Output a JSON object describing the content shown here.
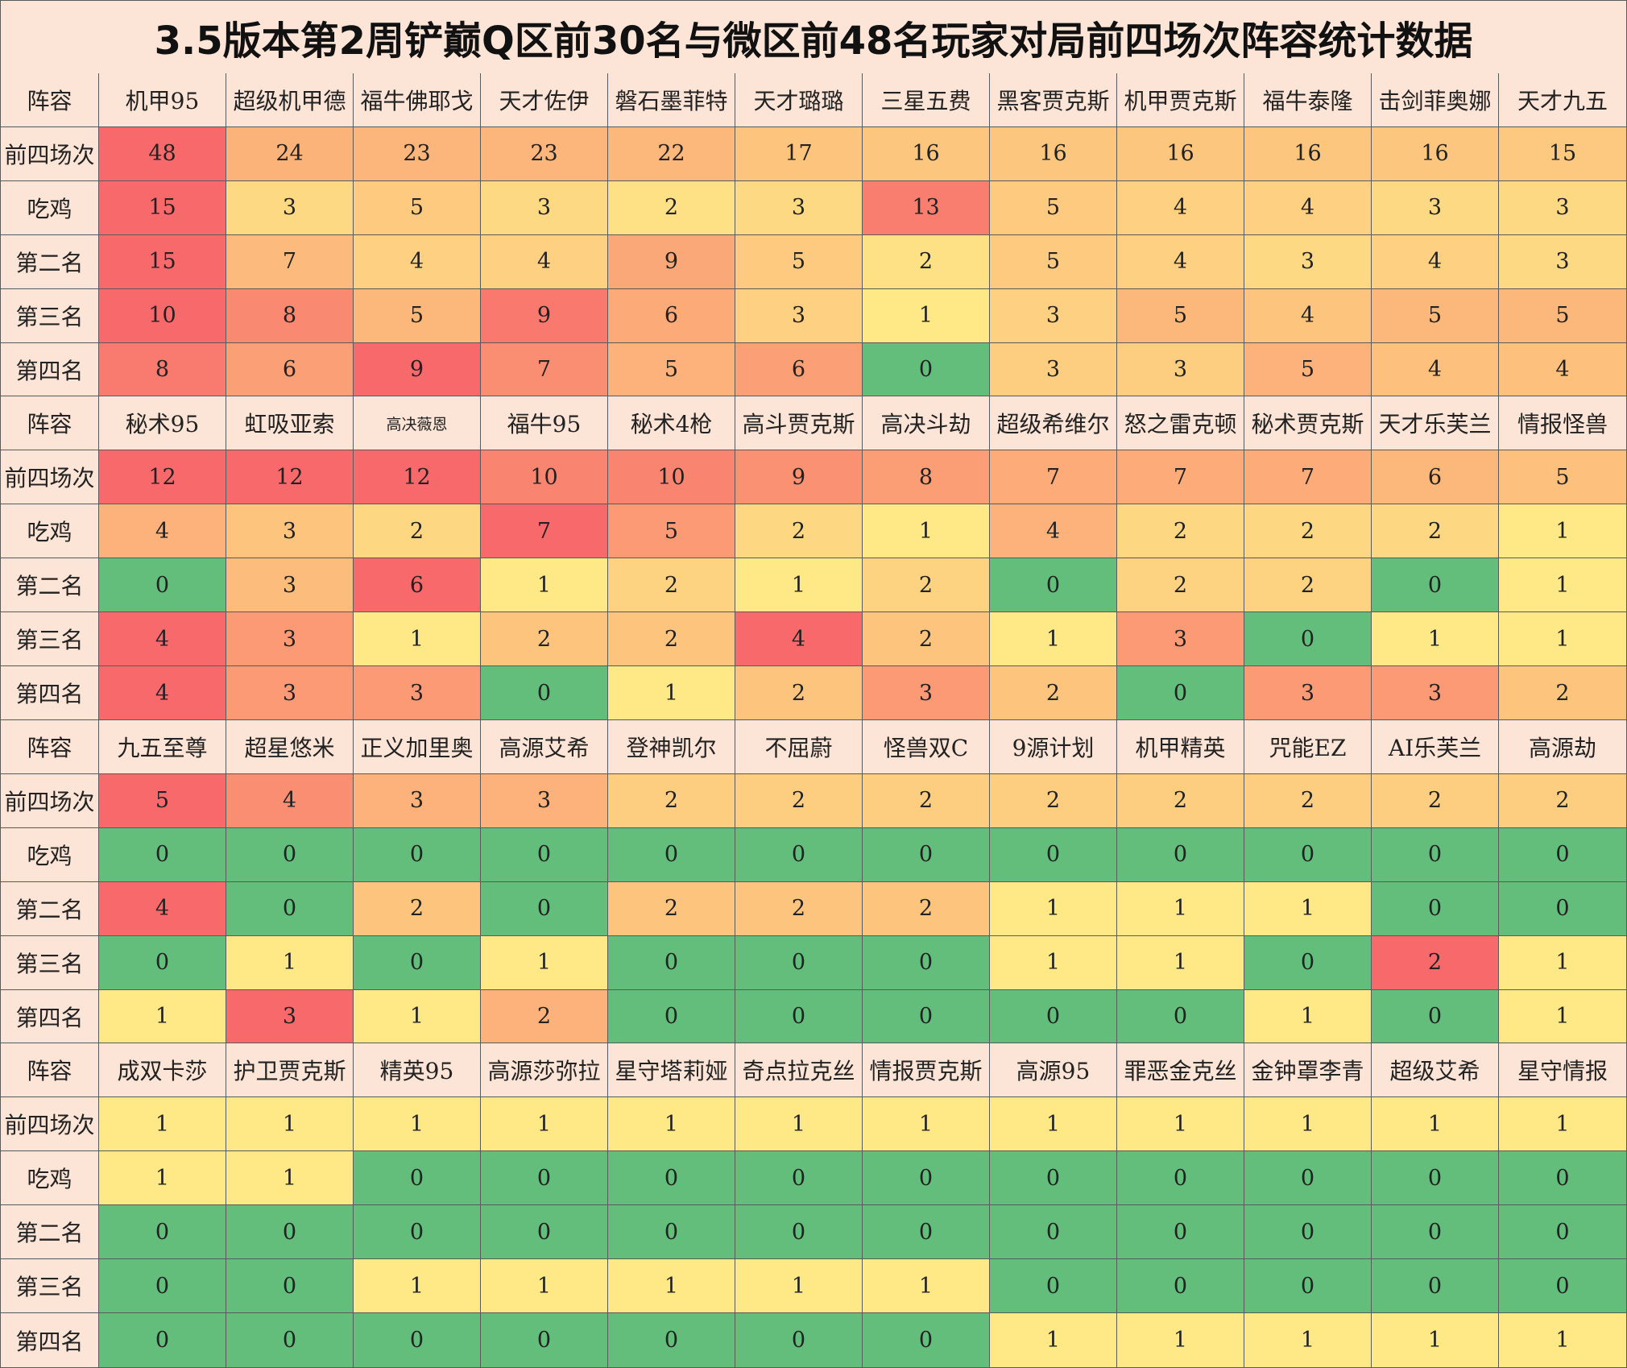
{
  "title": "3.5版本第2周铲巅Q区前30名与微区前48名玩家对局前四场次阵容统计数据",
  "chart_data": {
    "type": "table",
    "title": "3.5版本第2周铲巅Q区前30名与微区前48名玩家对局前四场次阵容统计数据",
    "header_label": "阵容",
    "row_labels": [
      "前四场次",
      "吃鸡",
      "第二名",
      "第三名",
      "第四名"
    ],
    "palette": {
      "green": "#63be7b",
      "yellow": "#fee986",
      "orange": "#fcb27a",
      "red": "#f8696b",
      "header": "#fce4d6"
    },
    "blocks": [
      {
        "lineups": [
          "机甲95",
          "超级机甲德",
          "福牛佛耶戈",
          "天才佐伊",
          "磐石墨菲特",
          "天才璐璐",
          "三星五费",
          "黑客贾克斯",
          "机甲贾克斯",
          "福牛泰隆",
          "击剑菲奥娜",
          "天才九五"
        ],
        "rows": [
          [
            48,
            24,
            23,
            23,
            22,
            17,
            16,
            16,
            16,
            16,
            16,
            15
          ],
          [
            15,
            3,
            5,
            3,
            2,
            3,
            13,
            5,
            4,
            4,
            3,
            3
          ],
          [
            15,
            7,
            4,
            4,
            9,
            5,
            2,
            5,
            4,
            3,
            4,
            3
          ],
          [
            10,
            8,
            5,
            9,
            6,
            3,
            1,
            3,
            5,
            4,
            5,
            5
          ],
          [
            8,
            6,
            9,
            7,
            5,
            6,
            0,
            3,
            3,
            5,
            4,
            4
          ]
        ]
      },
      {
        "lineups": [
          "秘术95",
          "虹吸亚索",
          "高决薇恩",
          "福牛95",
          "秘术4枪",
          "高斗贾克斯",
          "高决斗劫",
          "超级希维尔",
          "怒之雷克顿",
          "秘术贾克斯",
          "天才乐芙兰",
          "情报怪兽"
        ],
        "rows": [
          [
            12,
            12,
            12,
            10,
            10,
            9,
            8,
            7,
            7,
            7,
            6,
            5
          ],
          [
            4,
            3,
            2,
            7,
            5,
            2,
            1,
            4,
            2,
            2,
            2,
            1
          ],
          [
            0,
            3,
            6,
            1,
            2,
            1,
            2,
            0,
            2,
            2,
            0,
            1
          ],
          [
            4,
            3,
            1,
            2,
            2,
            4,
            2,
            1,
            3,
            0,
            1,
            1
          ],
          [
            4,
            3,
            3,
            0,
            1,
            2,
            3,
            2,
            0,
            3,
            3,
            2
          ]
        ]
      },
      {
        "lineups": [
          "九五至尊",
          "超星悠米",
          "正义加里奥",
          "高源艾希",
          "登神凯尔",
          "不屈蔚",
          "怪兽双C",
          "9源计划",
          "机甲精英",
          "咒能EZ",
          "AI乐芙兰",
          "高源劫"
        ],
        "rows": [
          [
            5,
            4,
            3,
            3,
            2,
            2,
            2,
            2,
            2,
            2,
            2,
            2
          ],
          [
            0,
            0,
            0,
            0,
            0,
            0,
            0,
            0,
            0,
            0,
            0,
            0
          ],
          [
            4,
            0,
            2,
            0,
            2,
            2,
            2,
            1,
            1,
            1,
            0,
            0
          ],
          [
            0,
            1,
            0,
            1,
            0,
            0,
            0,
            1,
            1,
            0,
            2,
            1
          ],
          [
            1,
            3,
            1,
            2,
            0,
            0,
            0,
            0,
            0,
            1,
            0,
            1
          ]
        ]
      },
      {
        "lineups": [
          "成双卡莎",
          "护卫贾克斯",
          "精英95",
          "高源莎弥拉",
          "星守塔莉娅",
          "奇点拉克丝",
          "情报贾克斯",
          "高源95",
          "罪恶金克丝",
          "金钟罩李青",
          "超级艾希",
          "星守情报"
        ],
        "rows": [
          [
            1,
            1,
            1,
            1,
            1,
            1,
            1,
            1,
            1,
            1,
            1,
            1
          ],
          [
            1,
            1,
            0,
            0,
            0,
            0,
            0,
            0,
            0,
            0,
            0,
            0
          ],
          [
            0,
            0,
            0,
            0,
            0,
            0,
            0,
            0,
            0,
            0,
            0,
            0
          ],
          [
            0,
            0,
            1,
            1,
            1,
            1,
            1,
            0,
            0,
            0,
            0,
            0
          ],
          [
            0,
            0,
            0,
            0,
            0,
            0,
            0,
            1,
            1,
            1,
            1,
            1
          ]
        ]
      }
    ]
  }
}
